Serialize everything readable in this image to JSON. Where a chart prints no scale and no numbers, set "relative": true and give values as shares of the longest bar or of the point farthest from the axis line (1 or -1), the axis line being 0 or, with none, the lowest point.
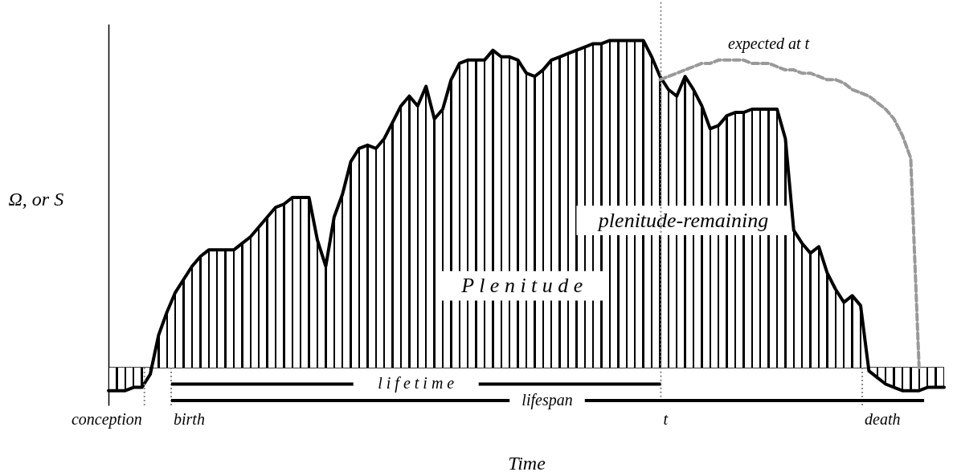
{
  "chart_data": {
    "type": "line",
    "relative": true,
    "xlabel": "Time",
    "ylabel": "Ω, or S",
    "categories": [
      null,
      null,
      null,
      null,
      null,
      null,
      null,
      null,
      null,
      null,
      null,
      null,
      null,
      null,
      null,
      null,
      null,
      null,
      null,
      null,
      null,
      null,
      null,
      null,
      null,
      null,
      null,
      null,
      null,
      null,
      null,
      null,
      null,
      null,
      null,
      null,
      null,
      null,
      null,
      null,
      null,
      null,
      null,
      null,
      null,
      null,
      null,
      null,
      null,
      null,
      null,
      null,
      null,
      null,
      null,
      null,
      null,
      null,
      null,
      null,
      null,
      null,
      null,
      null,
      null,
      null,
      null,
      null,
      null,
      null,
      null,
      null,
      null,
      null,
      null,
      null,
      null,
      null,
      null,
      null,
      null,
      null,
      null,
      null,
      null,
      null,
      null,
      null,
      null,
      null,
      null,
      null,
      null,
      null,
      null,
      null,
      null,
      null,
      null,
      null,
      null
    ],
    "series": [
      {
        "type": "area",
        "color": "#000000",
        "values": [
          -0.07,
          -0.07,
          -0.07,
          -0.06,
          -0.06,
          -0.02,
          0.1,
          0.17,
          0.23,
          0.27,
          0.31,
          0.34,
          0.36,
          0.36,
          0.36,
          0.36,
          0.38,
          0.4,
          0.43,
          0.46,
          0.49,
          0.5,
          0.52,
          0.52,
          0.52,
          0.39,
          0.31,
          0.46,
          0.53,
          0.63,
          0.67,
          0.68,
          0.67,
          0.7,
          0.75,
          0.8,
          0.83,
          0.8,
          0.86,
          0.76,
          0.79,
          0.88,
          0.93,
          0.94,
          0.94,
          0.94,
          0.97,
          0.95,
          0.95,
          0.94,
          0.9,
          0.89,
          0.91,
          0.94,
          0.95,
          0.96,
          0.97,
          0.98,
          0.99,
          0.99,
          1,
          1,
          1,
          1,
          1,
          0.95,
          0.89,
          0.85,
          0.83,
          0.89,
          0.85,
          0.8,
          0.73,
          0.74,
          0.77,
          0.78,
          0.78,
          0.79,
          0.79,
          0.79,
          0.79,
          0.7,
          0.42,
          0.38,
          0.35,
          0.37,
          0.29,
          0.24,
          0.2,
          0.22,
          0.19,
          -0.01,
          -0.03,
          -0.05,
          -0.06,
          -0.07,
          -0.07,
          -0.07,
          -0.06,
          -0.06,
          -0.06
        ]
      },
      {
        "color": "#999999",
        "line_style": "dashed",
        "values": [
          null,
          null,
          null,
          null,
          null,
          null,
          null,
          null,
          null,
          null,
          null,
          null,
          null,
          null,
          null,
          null,
          null,
          null,
          null,
          null,
          null,
          null,
          null,
          null,
          null,
          null,
          null,
          null,
          null,
          null,
          null,
          null,
          null,
          null,
          null,
          null,
          null,
          null,
          null,
          null,
          null,
          null,
          null,
          null,
          null,
          null,
          null,
          null,
          null,
          null,
          null,
          null,
          null,
          null,
          null,
          null,
          null,
          null,
          null,
          null,
          null,
          null,
          null,
          null,
          null,
          null,
          0.88,
          0.89,
          0.9,
          0.91,
          0.92,
          0.93,
          0.93,
          0.94,
          0.94,
          0.94,
          0.94,
          0.93,
          0.93,
          0.93,
          0.92,
          0.91,
          0.91,
          0.9,
          0.9,
          0.89,
          0.88,
          0.88,
          0.87,
          0.85,
          0.84,
          0.83,
          0.81,
          0.79,
          0.76,
          0.71,
          0.64,
          0,
          null,
          null,
          null
        ]
      }
    ],
    "annotations": [
      "expected at t",
      "P l e n i t u d e",
      "plenitude-remaining",
      "l i f e t i m e",
      "lifespan",
      "conception",
      "birth",
      "t",
      "death"
    ]
  }
}
